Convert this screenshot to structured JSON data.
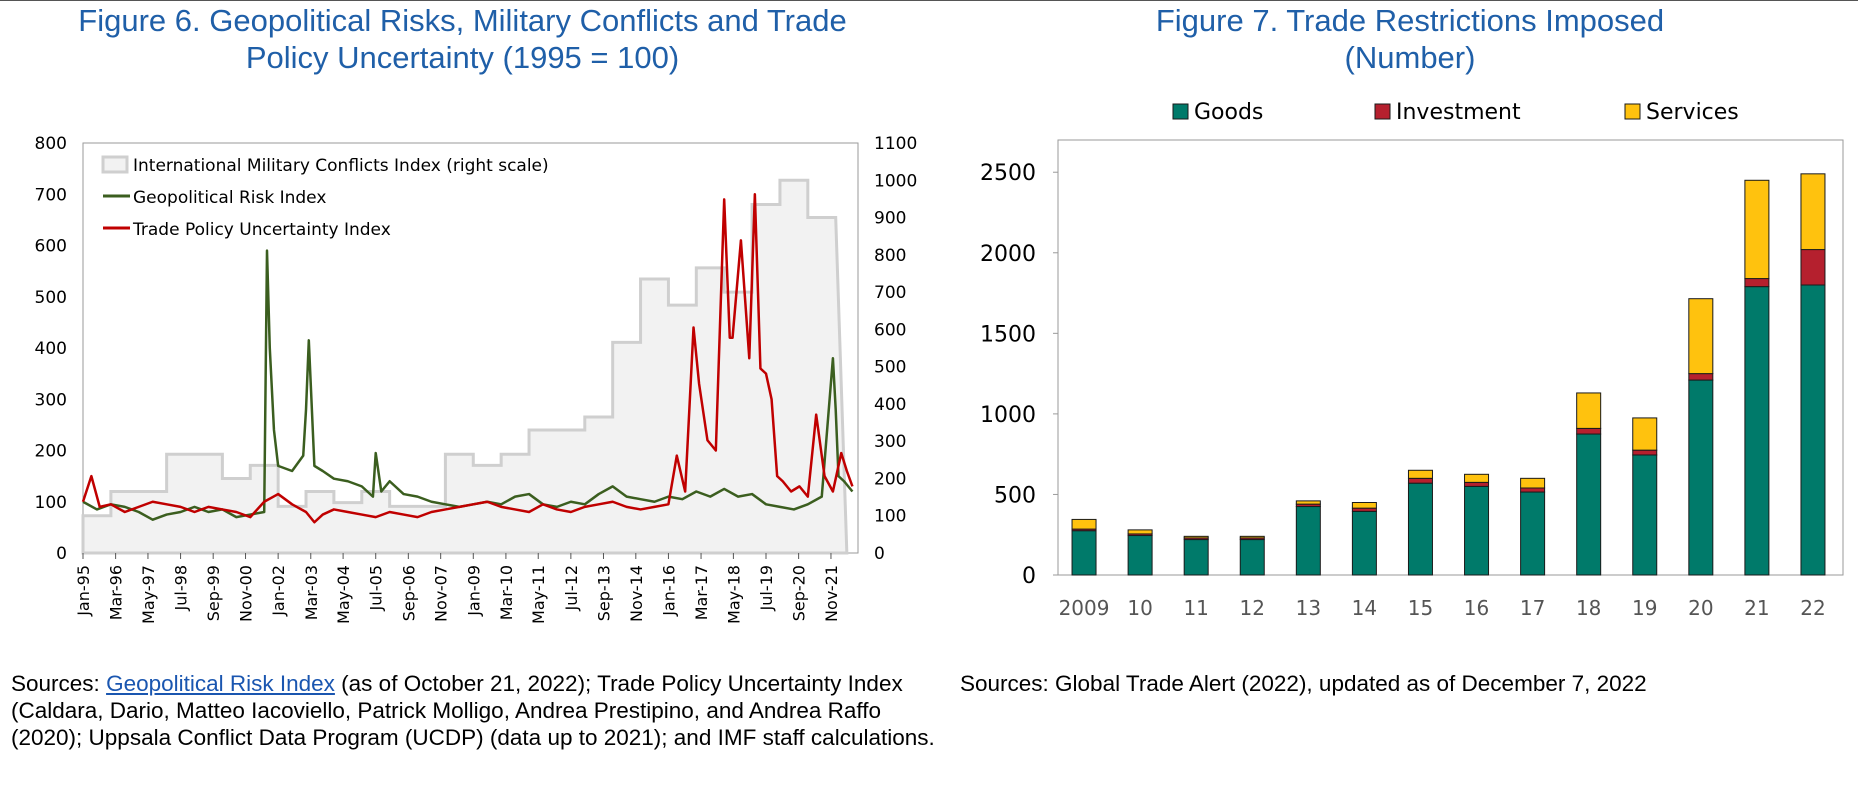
{
  "figure6": {
    "title_line1": "Figure 6. Geopolitical Risks, Military Conflicts and Trade",
    "title_line2": "Policy Uncertainty (1995 = 100)",
    "sources_label": "Sources:",
    "sources_link": "Geopolitical Risk Index",
    "sources_rest": " (as of October 21, 2022); Trade Policy Uncertainty Index (Caldara, Dario, Matteo Iacoviello, Patrick Molligo, Andrea Prestipino, and Andrea Raffo (2020); Uppsala Conflict Data Program (UCDP) (data up to 2021); and IMF staff calculations."
  },
  "figure7": {
    "title_line1": "Figure 7. Trade Restrictions Imposed",
    "title_line2": "(Number)",
    "sources": "Sources: Global Trade Alert (2022), updated as of December 7, 2022"
  },
  "chart_data": [
    {
      "type": "line",
      "title": "Figure 6. Geopolitical Risks, Military Conflicts and Trade Policy Uncertainty (1995 = 100)",
      "x_range": [
        1995.0,
        2022.8
      ],
      "x_tick_labels": [
        "Jan-95",
        "Mar-96",
        "May-97",
        "Jul-98",
        "Sep-99",
        "Nov-00",
        "Jan-02",
        "Mar-03",
        "May-04",
        "Jul-05",
        "Sep-06",
        "Nov-07",
        "Jan-09",
        "Mar-10",
        "May-11",
        "Jul-12",
        "Sep-13",
        "Nov-14",
        "Jan-16",
        "Mar-17",
        "May-18",
        "Jul-19",
        "Sep-20",
        "Nov-21"
      ],
      "x_tick_values": [
        1995.0,
        1996.17,
        1997.33,
        1998.5,
        1999.67,
        2000.83,
        2002.0,
        2003.17,
        2004.33,
        2005.5,
        2006.67,
        2007.83,
        2009.0,
        2010.17,
        2011.33,
        2012.5,
        2013.67,
        2014.83,
        2016.0,
        2017.17,
        2018.33,
        2019.5,
        2020.67,
        2021.83
      ],
      "y_left": {
        "min": 0,
        "max": 800,
        "ticks": [
          0,
          100,
          200,
          300,
          400,
          500,
          600,
          700,
          800
        ]
      },
      "y_right": {
        "min": 0,
        "max": 1100,
        "ticks": [
          0,
          100,
          200,
          300,
          400,
          500,
          600,
          700,
          800,
          900,
          1000,
          1100
        ]
      },
      "legend": [
        "International Military Conflicts Index (right scale)",
        "Geopolitical Risk Index",
        "Trade Policy Uncertainty Index"
      ],
      "legend_position": "top-left",
      "series": [
        {
          "name": "International Military Conflicts Index (right scale)",
          "axis": "right",
          "color": "#cfcfcf",
          "style": "step-area",
          "x": [
            1995,
            1996,
            1997,
            1998,
            1999,
            2000,
            2001,
            2002,
            2003,
            2004,
            2005,
            2006,
            2007,
            2008,
            2009,
            2010,
            2011,
            2012,
            2013,
            2014,
            2015,
            2016,
            2017,
            2018,
            2019,
            2020,
            2021
          ],
          "values": [
            100,
            165,
            165,
            265,
            265,
            200,
            235,
            125,
            165,
            135,
            165,
            125,
            125,
            265,
            235,
            265,
            330,
            330,
            365,
            565,
            735,
            665,
            765,
            700,
            935,
            1000,
            900
          ]
        },
        {
          "name": "Geopolitical Risk Index",
          "axis": "left",
          "color": "#3b5e1f",
          "x": [
            1995,
            1995.5,
            1996,
            1996.5,
            1997,
            1997.5,
            1998,
            1998.5,
            1999,
            1999.5,
            2000,
            2000.5,
            2001,
            2001.5,
            2001.6,
            2001.7,
            2001.85,
            2002,
            2002.5,
            2002.9,
            2003.0,
            2003.1,
            2003.3,
            2003.6,
            2004,
            2004.5,
            2005,
            2005.4,
            2005.5,
            2005.7,
            2006,
            2006.5,
            2007,
            2007.5,
            2008,
            2008.5,
            2009,
            2009.5,
            2010,
            2010.5,
            2011,
            2011.5,
            2012,
            2012.5,
            2013,
            2013.5,
            2014,
            2014.5,
            2015,
            2015.5,
            2016,
            2016.5,
            2017,
            2017.5,
            2018,
            2018.5,
            2019,
            2019.5,
            2020,
            2020.5,
            2021,
            2021.5,
            2021.9,
            2022.0,
            2022.1,
            2022.3,
            2022.6
          ],
          "values": [
            100,
            85,
            95,
            90,
            80,
            65,
            75,
            80,
            90,
            80,
            85,
            70,
            75,
            80,
            590,
            400,
            240,
            170,
            160,
            190,
            280,
            415,
            170,
            160,
            145,
            140,
            130,
            110,
            195,
            120,
            140,
            115,
            110,
            100,
            95,
            90,
            95,
            100,
            95,
            110,
            115,
            95,
            90,
            100,
            95,
            115,
            130,
            110,
            105,
            100,
            110,
            105,
            120,
            110,
            125,
            110,
            115,
            95,
            90,
            85,
            95,
            110,
            380,
            280,
            150,
            140,
            120
          ]
        },
        {
          "name": "Trade Policy Uncertainty Index",
          "axis": "left",
          "color": "#c00000",
          "x": [
            1995,
            1995.3,
            1995.6,
            1996,
            1996.5,
            1997,
            1997.5,
            1998,
            1998.5,
            1999,
            1999.5,
            2000,
            2000.5,
            2001,
            2001.5,
            2002,
            2002.5,
            2003,
            2003.3,
            2003.6,
            2004,
            2004.5,
            2005,
            2005.5,
            2006,
            2006.5,
            2007,
            2007.5,
            2008,
            2008.5,
            2009,
            2009.5,
            2010,
            2010.5,
            2011,
            2011.5,
            2012,
            2012.5,
            2013,
            2013.5,
            2014,
            2014.5,
            2015,
            2015.5,
            2016,
            2016.3,
            2016.6,
            2016.9,
            2017.1,
            2017.4,
            2017.7,
            2018.0,
            2018.2,
            2018.3,
            2018.6,
            2018.9,
            2019.1,
            2019.3,
            2019.5,
            2019.7,
            2019.9,
            2020.1,
            2020.4,
            2020.7,
            2021.0,
            2021.3,
            2021.6,
            2021.9,
            2022.2,
            2022.4,
            2022.6
          ],
          "values": [
            100,
            150,
            90,
            95,
            80,
            90,
            100,
            95,
            90,
            80,
            90,
            85,
            80,
            70,
            100,
            115,
            95,
            80,
            60,
            75,
            85,
            80,
            75,
            70,
            80,
            75,
            70,
            80,
            85,
            90,
            95,
            100,
            90,
            85,
            80,
            95,
            85,
            80,
            90,
            95,
            100,
            90,
            85,
            90,
            95,
            190,
            120,
            440,
            330,
            220,
            200,
            690,
            420,
            420,
            610,
            380,
            700,
            360,
            350,
            300,
            150,
            140,
            120,
            130,
            110,
            270,
            150,
            120,
            195,
            160,
            130
          ]
        }
      ]
    },
    {
      "type": "bar",
      "stacked": true,
      "title": "Figure 7. Trade Restrictions Imposed (Number)",
      "categories": [
        "2009",
        "10",
        "11",
        "12",
        "13",
        "14",
        "15",
        "16",
        "17",
        "18",
        "19",
        "20",
        "21",
        "22"
      ],
      "ylim": [
        0,
        2700
      ],
      "y_ticks": [
        0,
        500,
        1000,
        1500,
        2000,
        2500
      ],
      "legend": [
        "Goods",
        "Investment",
        "Services"
      ],
      "legend_position": "top",
      "series": [
        {
          "name": "Goods",
          "color": "#007a6a",
          "values": [
            275,
            245,
            220,
            220,
            425,
            395,
            570,
            550,
            515,
            875,
            745,
            1210,
            1790,
            1800
          ]
        },
        {
          "name": "Investment",
          "color": "#b5202e",
          "values": [
            10,
            10,
            10,
            10,
            15,
            20,
            30,
            25,
            25,
            35,
            30,
            40,
            50,
            220
          ]
        },
        {
          "name": "Services",
          "color": "#ffc20e",
          "values": [
            60,
            25,
            10,
            10,
            20,
            35,
            50,
            50,
            60,
            220,
            200,
            465,
            610,
            470
          ]
        }
      ]
    }
  ]
}
